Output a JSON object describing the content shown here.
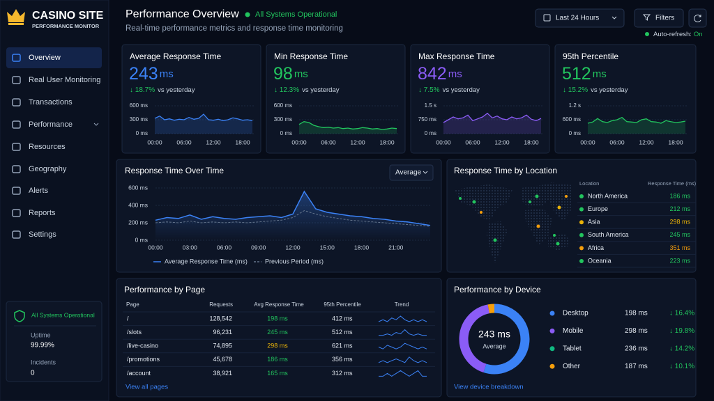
{
  "brand": {
    "name": "CASINO SITE",
    "subtitle": "PERFORMANCE MONITOR"
  },
  "nav": [
    {
      "label": "Overview",
      "active": true
    },
    {
      "label": "Real User Monitoring"
    },
    {
      "label": "Transactions"
    },
    {
      "label": "Performance"
    },
    {
      "label": "Resources"
    },
    {
      "label": "Geography"
    },
    {
      "label": "Alerts"
    },
    {
      "label": "Reports"
    },
    {
      "label": "Settings"
    }
  ],
  "status_box": {
    "title": "All Systems Operational",
    "uptime_label": "Uptime",
    "uptime": "99.99%",
    "incidents_label": "Incidents",
    "incidents": 0
  },
  "header": {
    "title": "Performance Overview",
    "status": "All Systems Operational",
    "subtitle": "Real-time performance metrics and response time monitoring",
    "range": "Last 24 Hours",
    "filters": "Filters",
    "auto_refresh_label": "Auto-refresh:",
    "auto_refresh": "On"
  },
  "kpis": [
    {
      "title": "Average Response Time",
      "value": 243,
      "unit": "ms",
      "change": "↓ 18.7%",
      "change_note": "vs yesterday",
      "color": "#3b82f6",
      "ylim": [
        0,
        600
      ],
      "yticks": [
        {
          "value": 0,
          "label": "0 ms"
        },
        {
          "value": 300,
          "label": "300 ms"
        },
        {
          "value": 600,
          "label": "600 ms"
        }
      ],
      "xlim": [
        0,
        20
      ],
      "xticks": [
        {
          "value": 0,
          "label": "00:00"
        },
        {
          "value": 6,
          "label": "06:00"
        },
        {
          "value": 12,
          "label": "12:00"
        },
        {
          "value": 18,
          "label": "18:00"
        }
      ],
      "values": [
        330,
        380,
        300,
        320,
        290,
        310,
        300,
        350,
        310,
        330,
        420,
        300,
        290,
        310,
        280,
        300,
        340,
        320,
        290,
        300,
        280
      ]
    },
    {
      "title": "Min Response Time",
      "value": 98,
      "unit": "ms",
      "change": "↓ 12.3%",
      "change_note": "vs yesterday",
      "color": "#22c55e",
      "ylim": [
        0,
        600
      ],
      "yticks": [
        {
          "value": 0,
          "label": "0 ms"
        },
        {
          "value": 300,
          "label": "300 ms"
        },
        {
          "value": 600,
          "label": "600 ms"
        }
      ],
      "xlim": [
        0,
        20
      ],
      "xticks": [
        {
          "value": 0,
          "label": "00:00"
        },
        {
          "value": 6,
          "label": "06:00"
        },
        {
          "value": 12,
          "label": "12:00"
        },
        {
          "value": 18,
          "label": "18:00"
        }
      ],
      "values": [
        200,
        260,
        240,
        180,
        150,
        130,
        140,
        120,
        130,
        110,
        120,
        100,
        110,
        130,
        120,
        100,
        110,
        90,
        100,
        120,
        110
      ]
    },
    {
      "title": "Max Response Time",
      "value": 842,
      "unit": "ms",
      "change": "↓ 7.5%",
      "change_note": "vs yesterday",
      "color": "#8b5cf6",
      "ylim": [
        0,
        1500
      ],
      "yticks": [
        {
          "value": 0,
          "label": "0 ms"
        },
        {
          "value": 750,
          "label": "750 ms"
        },
        {
          "value": 1500,
          "label": "1.5 s"
        }
      ],
      "xlim": [
        0,
        20
      ],
      "xticks": [
        {
          "value": 0,
          "label": "00:00"
        },
        {
          "value": 6,
          "label": "06:00"
        },
        {
          "value": 12,
          "label": "12:00"
        },
        {
          "value": 18,
          "label": "18:00"
        }
      ],
      "values": [
        600,
        750,
        900,
        800,
        850,
        1000,
        700,
        800,
        900,
        1100,
        850,
        950,
        800,
        750,
        900,
        800,
        850,
        1000,
        780,
        700,
        820
      ]
    },
    {
      "title": "95th Percentile",
      "value": 512,
      "unit": "ms",
      "change": "↓ 15.2%",
      "change_note": "vs yesterday",
      "color": "#22c55e",
      "ylim": [
        0,
        1200
      ],
      "yticks": [
        {
          "value": 0,
          "label": "0 ms"
        },
        {
          "value": 600,
          "label": "600 ms"
        },
        {
          "value": 1200,
          "label": "1.2 s"
        }
      ],
      "xlim": [
        0,
        20
      ],
      "xticks": [
        {
          "value": 0,
          "label": "00:00"
        },
        {
          "value": 6,
          "label": "06:00"
        },
        {
          "value": 12,
          "label": "12:00"
        },
        {
          "value": 18,
          "label": "18:00"
        }
      ],
      "values": [
        450,
        500,
        650,
        520,
        480,
        560,
        600,
        700,
        520,
        500,
        480,
        600,
        640,
        520,
        500,
        450,
        560,
        520,
        480,
        500,
        540
      ]
    }
  ],
  "response_chart": {
    "title": "Response Time Over Time",
    "dropdown": "Average",
    "ylim": [
      0,
      600
    ],
    "yticks": [
      {
        "value": 0,
        "label": "0 ms"
      },
      {
        "value": 200,
        "label": "200 ms"
      },
      {
        "value": 400,
        "label": "400 ms"
      },
      {
        "value": 600,
        "label": "600 ms"
      }
    ],
    "xlim": [
      0,
      24
    ],
    "xticks": [
      {
        "value": 0,
        "label": "00:00"
      },
      {
        "value": 3,
        "label": "03:00"
      },
      {
        "value": 6,
        "label": "06:00"
      },
      {
        "value": 9,
        "label": "09:00"
      },
      {
        "value": 12,
        "label": "12:00"
      },
      {
        "value": 15,
        "label": "15:00"
      },
      {
        "value": 18,
        "label": "18:00"
      },
      {
        "value": 21,
        "label": "21:00"
      }
    ],
    "series": [
      {
        "name": "Average Response Time (ms)",
        "color": "#3b82f6",
        "values": [
          230,
          260,
          250,
          290,
          240,
          270,
          250,
          240,
          260,
          270,
          280,
          260,
          300,
          560,
          360,
          320,
          300,
          280,
          270,
          250,
          240,
          220,
          210,
          190,
          170
        ]
      },
      {
        "name": "Previous Period (ms)",
        "color": "#64748b",
        "dashed": true,
        "values": [
          200,
          210,
          200,
          220,
          200,
          210,
          200,
          210,
          200,
          210,
          220,
          230,
          260,
          340,
          300,
          270,
          250,
          230,
          220,
          210,
          200,
          190,
          180,
          170,
          160
        ]
      }
    ]
  },
  "location": {
    "title": "Response Time by Location",
    "headers": [
      "Location",
      "Response Time (ms)"
    ],
    "rows": [
      {
        "name": "North America",
        "value": "186 ms",
        "color": "#22c55e"
      },
      {
        "name": "Europe",
        "value": "212 ms",
        "color": "#22c55e"
      },
      {
        "name": "Asia",
        "value": "298 ms",
        "color": "#eab308"
      },
      {
        "name": "South America",
        "value": "245 ms",
        "color": "#22c55e"
      },
      {
        "name": "Africa",
        "value": "351 ms",
        "color": "#f59e0b"
      },
      {
        "name": "Oceania",
        "value": "223 ms",
        "color": "#22c55e"
      }
    ]
  },
  "pages": {
    "title": "Performance by Page",
    "headers": [
      "Page",
      "Requests",
      "Avg Response Time",
      "95th Percentile",
      "Trend"
    ],
    "rows": [
      {
        "page": "/",
        "requests": "128,542",
        "avg": "198 ms",
        "avg_color": "#22c55e",
        "p95": "412 ms",
        "trend": [
          5,
          6,
          5,
          7,
          6,
          8,
          6,
          5,
          6,
          5,
          6,
          5
        ]
      },
      {
        "page": "/slots",
        "requests": "96,231",
        "avg": "245 ms",
        "avg_color": "#22c55e",
        "p95": "512 ms",
        "trend": [
          5,
          5,
          6,
          5,
          7,
          6,
          9,
          6,
          5,
          6,
          5,
          5
        ]
      },
      {
        "page": "/live-casino",
        "requests": "74,895",
        "avg": "298 ms",
        "avg_color": "#eab308",
        "p95": "621 ms",
        "trend": [
          6,
          5,
          7,
          6,
          5,
          6,
          8,
          7,
          6,
          5,
          6,
          5
        ]
      },
      {
        "page": "/promotions",
        "requests": "45,678",
        "avg": "186 ms",
        "avg_color": "#22c55e",
        "p95": "356 ms",
        "trend": [
          5,
          6,
          5,
          6,
          7,
          6,
          5,
          8,
          6,
          5,
          6,
          5
        ]
      },
      {
        "page": "/account",
        "requests": "38,921",
        "avg": "165 ms",
        "avg_color": "#22c55e",
        "p95": "312 ms",
        "trend": [
          5,
          5,
          6,
          5,
          6,
          7,
          6,
          5,
          6,
          7,
          5,
          5
        ]
      }
    ],
    "link": "View all pages"
  },
  "devices": {
    "title": "Performance by Device",
    "center_value": "243 ms",
    "center_label": "Average",
    "rows": [
      {
        "name": "Desktop",
        "value": "198 ms",
        "change": "↓ 16.4%",
        "color": "#3b82f6",
        "share": 55
      },
      {
        "name": "Mobile",
        "value": "298 ms",
        "change": "↓ 19.8%",
        "color": "#8b5cf6",
        "share": 42
      },
      {
        "name": "Tablet",
        "value": "236 ms",
        "change": "↓ 14.2%",
        "color": "#10b981",
        "share": 0
      },
      {
        "name": "Other",
        "value": "187 ms",
        "change": "↓ 10.1%",
        "color": "#f59e0b",
        "share": 3
      }
    ],
    "link": "View device breakdown"
  }
}
